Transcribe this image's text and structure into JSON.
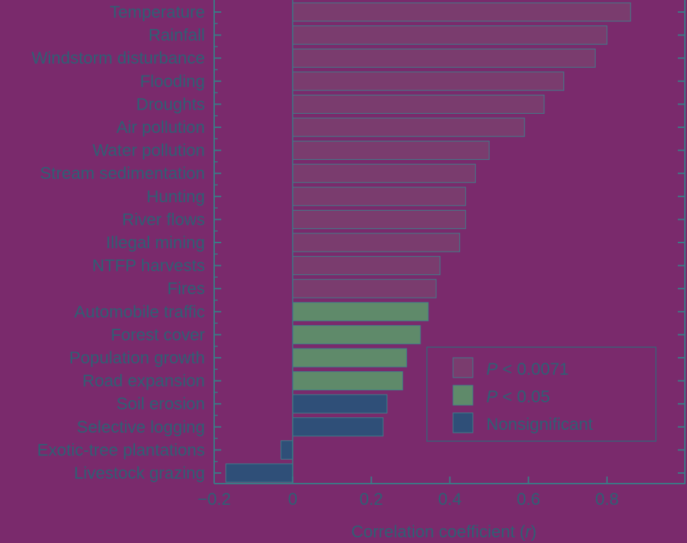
{
  "chart_data": {
    "type": "bar",
    "orientation": "horizontal",
    "categories": [
      "Temperature",
      "Rainfall",
      "Windstorm disturbance",
      "Flooding",
      "Droughts",
      "Air pollution",
      "Water pollution",
      "Stream sedimentation",
      "Hunting",
      "River flows",
      "Illegal mining",
      "NTFP harvests",
      "Fires",
      "Automobile traffic",
      "Forest cover",
      "Population growth",
      "Road expansion",
      "Soil erosion",
      "Selective logging",
      "Exotic-tree plantations",
      "Livestock grazing"
    ],
    "values": [
      0.86,
      0.8,
      0.77,
      0.69,
      0.64,
      0.59,
      0.5,
      0.465,
      0.44,
      0.44,
      0.425,
      0.375,
      0.365,
      0.345,
      0.325,
      0.29,
      0.28,
      0.24,
      0.23,
      -0.03,
      -0.17
    ],
    "significance": [
      "P < 0.0071",
      "P < 0.0071",
      "P < 0.0071",
      "P < 0.0071",
      "P < 0.0071",
      "P < 0.0071",
      "P < 0.0071",
      "P < 0.0071",
      "P < 0.0071",
      "P < 0.0071",
      "P < 0.0071",
      "P < 0.0071",
      "P < 0.0071",
      "P < 0.05",
      "P < 0.05",
      "P < 0.05",
      "P < 0.05",
      "Nonsignificant",
      "Nonsignificant",
      "Nonsignificant",
      "Nonsignificant"
    ],
    "xlim": [
      -0.2,
      1.0
    ],
    "xticks": [
      -0.2,
      0,
      0.2,
      0.4,
      0.6,
      0.8
    ],
    "xtick_labels": [
      "−0.2",
      "0",
      "0.2",
      "0.4",
      "0.6",
      "0.8"
    ],
    "xlabel_prefix": "Correlation coefficient (",
    "xlabel_var": "r",
    "xlabel_suffix": ")",
    "grid": false,
    "legend_position": "bottom-right",
    "legend": [
      {
        "key": "P < 0.0071",
        "italic": "P",
        "rest": " < 0.0071",
        "color": "#7a3c6e"
      },
      {
        "key": "P < 0.05",
        "italic": "P",
        "rest": " < 0.05",
        "color": "#5f8a6a"
      },
      {
        "key": "Nonsignificant",
        "italic": "",
        "rest": "Nonsignificant",
        "color": "#2f4f78"
      }
    ],
    "colors": {
      "P < 0.0071": "#7a3c6e",
      "P < 0.05": "#5f8a6a",
      "Nonsignificant": "#2f4f78",
      "bar_edge": "#3f7f8a",
      "axis": "#3b7a86"
    }
  }
}
